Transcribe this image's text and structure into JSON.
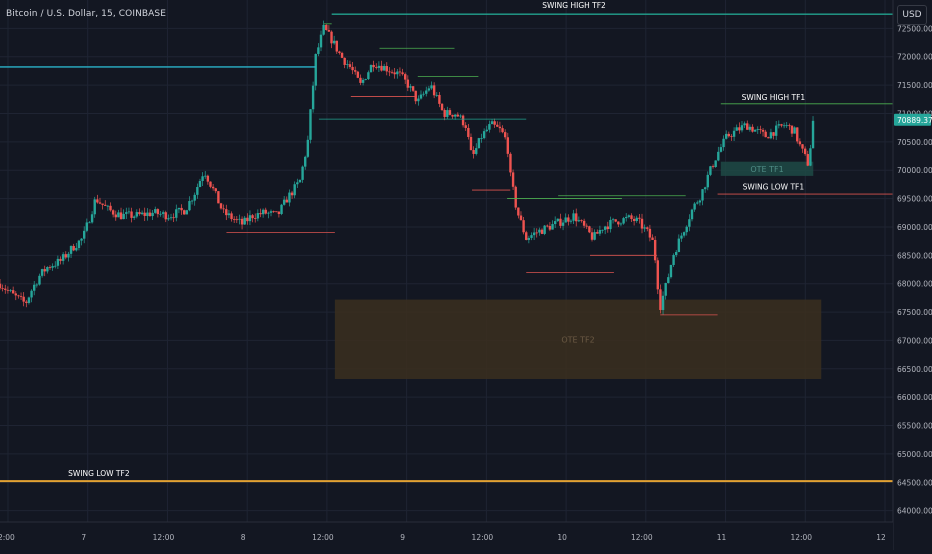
{
  "header": {
    "symbol_title": "Bitcoin / U.S. Dollar, 15, COINBASE",
    "currency_button": "USD"
  },
  "colors": {
    "background": "#131722",
    "grid": "#1f2433",
    "axis_text": "#b2b5be",
    "candle_up": "#26a69a",
    "candle_down": "#ef5350",
    "line_green": "#4caf50",
    "line_red": "#d9534f",
    "line_cyan": "#2ab3c9",
    "line_teal": "#22a28e",
    "line_orange": "#e2a233",
    "ote_tf2_fill": "#3b2f1e",
    "ote_tf1_fill": "#1e4a45",
    "price_badge": "#26a69a"
  },
  "chart_data": {
    "type": "candlestick",
    "ylim": [
      63800,
      73000
    ],
    "y_ticks": [
      64000,
      64500,
      65000,
      65500,
      66000,
      66500,
      67000,
      67500,
      68000,
      68500,
      69000,
      69500,
      70000,
      70500,
      71000,
      71500,
      72000,
      72500
    ],
    "y_tick_labels": [
      "64000.00",
      "64500.00",
      "65000.00",
      "65500.00",
      "66000.00",
      "66500.00",
      "67000.00",
      "67500.00",
      "68000.00",
      "68500.00",
      "69000.00",
      "69500.00",
      "70000.00",
      "70500.00",
      "71000.00",
      "71500.00",
      "72000.00",
      "72500.00"
    ],
    "xlim": [
      0,
      5.6
    ],
    "x_ticks": [
      0.05,
      0.55,
      1.05,
      1.55,
      2.05,
      2.55,
      3.05,
      3.55,
      4.05,
      4.55,
      5.05,
      5.55
    ],
    "x_tick_labels": [
      "12:00",
      "7",
      "12:00",
      "8",
      "12:00",
      "9",
      "12:00",
      "10",
      "12:00",
      "11",
      "12:00",
      "12"
    ],
    "current_price": 70889.37,
    "current_price_label": "70889.37",
    "path": [
      [
        0.0,
        68000
      ],
      [
        0.08,
        67800
      ],
      [
        0.16,
        67650
      ],
      [
        0.2,
        67900
      ],
      [
        0.25,
        68150
      ],
      [
        0.3,
        68300
      ],
      [
        0.38,
        68400
      ],
      [
        0.46,
        68650
      ],
      [
        0.52,
        68800
      ],
      [
        0.6,
        69500
      ],
      [
        0.68,
        69300
      ],
      [
        0.76,
        69200
      ],
      [
        0.86,
        69200
      ],
      [
        0.96,
        69250
      ],
      [
        1.06,
        69200
      ],
      [
        1.16,
        69300
      ],
      [
        1.22,
        69600
      ],
      [
        1.28,
        70000
      ],
      [
        1.33,
        69700
      ],
      [
        1.4,
        69250
      ],
      [
        1.46,
        69150
      ],
      [
        1.52,
        69050
      ],
      [
        1.58,
        69200
      ],
      [
        1.66,
        69250
      ],
      [
        1.74,
        69200
      ],
      [
        1.8,
        69500
      ],
      [
        1.88,
        69800
      ],
      [
        1.93,
        70500
      ],
      [
        1.98,
        72000
      ],
      [
        2.03,
        72500
      ],
      [
        2.08,
        72300
      ],
      [
        2.14,
        72000
      ],
      [
        2.2,
        71800
      ],
      [
        2.26,
        71500
      ],
      [
        2.34,
        71900
      ],
      [
        2.42,
        71800
      ],
      [
        2.5,
        71700
      ],
      [
        2.56,
        71500
      ],
      [
        2.62,
        71200
      ],
      [
        2.7,
        71500
      ],
      [
        2.78,
        71000
      ],
      [
        2.86,
        71000
      ],
      [
        2.92,
        70800
      ],
      [
        2.96,
        70200
      ],
      [
        3.02,
        70600
      ],
      [
        3.08,
        70800
      ],
      [
        3.14,
        70700
      ],
      [
        3.18,
        70500
      ],
      [
        3.2,
        69900
      ],
      [
        3.24,
        69300
      ],
      [
        3.3,
        68800
      ],
      [
        3.36,
        68900
      ],
      [
        3.44,
        69000
      ],
      [
        3.52,
        69100
      ],
      [
        3.6,
        69200
      ],
      [
        3.66,
        69000
      ],
      [
        3.72,
        68800
      ],
      [
        3.78,
        69000
      ],
      [
        3.86,
        69100
      ],
      [
        3.94,
        69150
      ],
      [
        4.0,
        69100
      ],
      [
        4.06,
        68900
      ],
      [
        4.1,
        68700
      ],
      [
        4.12,
        68100
      ],
      [
        4.14,
        67600
      ],
      [
        4.18,
        68000
      ],
      [
        4.22,
        68500
      ],
      [
        4.28,
        68900
      ],
      [
        4.34,
        69300
      ],
      [
        4.4,
        69600
      ],
      [
        4.44,
        69900
      ],
      [
        4.5,
        70300
      ],
      [
        4.56,
        70600
      ],
      [
        4.62,
        70700
      ],
      [
        4.68,
        70800
      ],
      [
        4.74,
        70700
      ],
      [
        4.8,
        70600
      ],
      [
        4.86,
        70700
      ],
      [
        4.92,
        70800
      ],
      [
        4.98,
        70700
      ],
      [
        5.02,
        70400
      ],
      [
        5.07,
        70100
      ],
      [
        5.1,
        70900
      ]
    ],
    "segments": [
      {
        "x1": 2.08,
        "x2": 5.6,
        "y": 72750,
        "color": "teal",
        "w": 1.4
      },
      {
        "x1": 0.0,
        "x2": 1.98,
        "y": 71820,
        "color": "cyan",
        "w": 1.4
      },
      {
        "x1": 0.0,
        "x2": 5.6,
        "y": 64520,
        "color": "orange",
        "w": 2
      },
      {
        "x1": 2.0,
        "x2": 3.3,
        "y": 70900,
        "color": "teal",
        "w": 0.8
      },
      {
        "x1": 2.03,
        "x2": 2.08,
        "y": 72580,
        "color": "green",
        "w": 0.8
      },
      {
        "x1": 2.38,
        "x2": 2.85,
        "y": 72150,
        "color": "green",
        "w": 0.8
      },
      {
        "x1": 2.62,
        "x2": 3.0,
        "y": 71650,
        "color": "green",
        "w": 0.8
      },
      {
        "x1": 3.18,
        "x2": 3.9,
        "y": 69500,
        "color": "green",
        "w": 0.8
      },
      {
        "x1": 3.5,
        "x2": 4.3,
        "y": 69550,
        "color": "green",
        "w": 0.8
      },
      {
        "x1": 4.52,
        "x2": 5.6,
        "y": 71170,
        "color": "green",
        "w": 0.8
      },
      {
        "x1": 2.2,
        "x2": 2.6,
        "y": 71300,
        "color": "red",
        "w": 0.8
      },
      {
        "x1": 2.96,
        "x2": 3.2,
        "y": 69650,
        "color": "red",
        "w": 0.8
      },
      {
        "x1": 3.3,
        "x2": 3.85,
        "y": 68200,
        "color": "red",
        "w": 0.8
      },
      {
        "x1": 3.7,
        "x2": 4.12,
        "y": 68500,
        "color": "red",
        "w": 0.8
      },
      {
        "x1": 4.14,
        "x2": 4.5,
        "y": 67450,
        "color": "red",
        "w": 0.8
      },
      {
        "x1": 4.5,
        "x2": 5.6,
        "y": 69580,
        "color": "red",
        "w": 0.8
      },
      {
        "x1": 1.42,
        "x2": 2.1,
        "y": 68900,
        "color": "red",
        "w": 0.8
      }
    ],
    "zones": [
      {
        "name": "OTE TF2",
        "x1": 2.1,
        "x2": 5.15,
        "y1": 66320,
        "y2": 67720,
        "fill": "ote_tf2_fill"
      },
      {
        "name": "OTE TF1",
        "x1": 4.52,
        "x2": 5.1,
        "y1": 69900,
        "y2": 70150,
        "fill": "ote_tf1_fill"
      }
    ],
    "annotations": [
      {
        "text": "SWING HIGH TF2",
        "x": 3.6,
        "y": 72860
      },
      {
        "text": "SWING HIGH TF1",
        "x": 4.85,
        "y": 71240
      },
      {
        "text": "SWING LOW TF1",
        "x": 4.85,
        "y": 69660
      },
      {
        "text": "SWING LOW TF2",
        "x": 0.62,
        "y": 64610
      }
    ]
  }
}
